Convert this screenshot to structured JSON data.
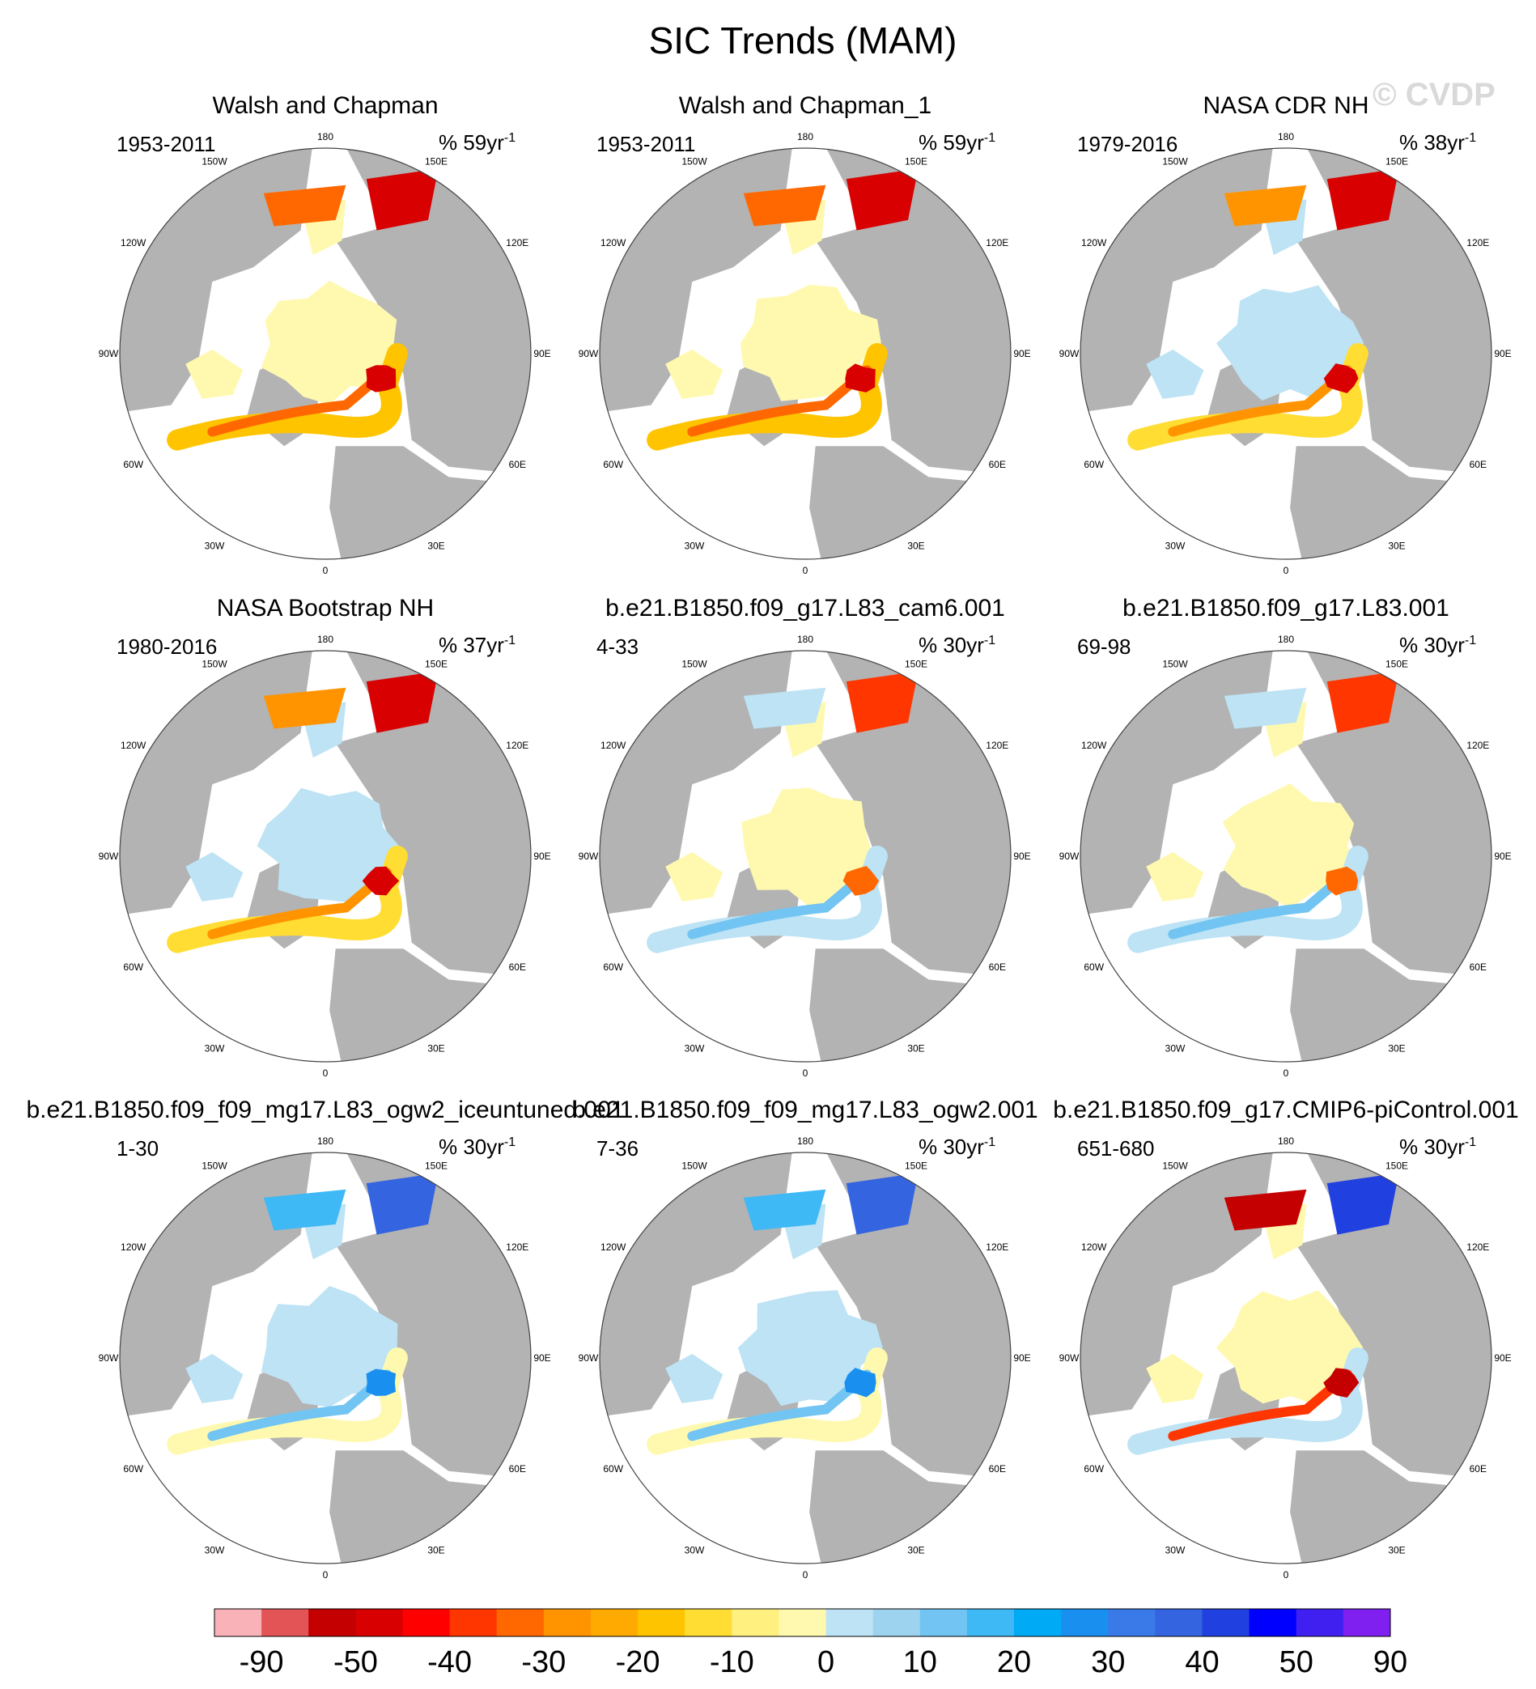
{
  "chart_data": {
    "type": "heatmap",
    "title": "SIC Trends (MAM)",
    "watermark": "© CVDP",
    "projection": "north polar stereographic",
    "lon_labels": [
      "180",
      "150E",
      "120E",
      "90E",
      "60E",
      "30E",
      "0",
      "30W",
      "60W",
      "90W",
      "120W",
      "150W"
    ],
    "panels": [
      {
        "name": "Walsh and Chapman",
        "period": "1953-2011",
        "units": "% 59yr",
        "units_exp": "-1",
        "regime": "decline-strong"
      },
      {
        "name": "Walsh and Chapman_1",
        "period": "1953-2011",
        "units": "% 59yr",
        "units_exp": "-1",
        "regime": "decline-strong"
      },
      {
        "name": "NASA CDR NH",
        "period": "1979-2016",
        "units": "% 38yr",
        "units_exp": "-1",
        "regime": "decline"
      },
      {
        "name": "NASA Bootstrap NH",
        "period": "1980-2016",
        "units": "% 37yr",
        "units_exp": "-1",
        "regime": "decline"
      },
      {
        "name": "b.e21.B1850.f09_g17.L83_cam6.001",
        "period": "4-33",
        "units": "% 30yr",
        "units_exp": "-1",
        "regime": "mixed"
      },
      {
        "name": "b.e21.B1850.f09_g17.L83.001",
        "period": "69-98",
        "units": "% 30yr",
        "units_exp": "-1",
        "regime": "mixed"
      },
      {
        "name": "b.e21.B1850.f09_f09_mg17.L83_ogw2_iceuntuned.001",
        "period": "1-30",
        "units": "% 30yr",
        "units_exp": "-1",
        "regime": "increase"
      },
      {
        "name": "b.e21.B1850.f09_f09_mg17.L83_ogw2.001",
        "period": "7-36",
        "units": "% 30yr",
        "units_exp": "-1",
        "regime": "increase"
      },
      {
        "name": "b.e21.B1850.f09_g17.CMIP6-piControl.001",
        "period": "651-680",
        "units": "% 30yr",
        "units_exp": "-1",
        "regime": "mixed-strong"
      }
    ],
    "colorbar": {
      "labels": [
        "-90",
        "-50",
        "-40",
        "-30",
        "-20",
        "-10",
        "0",
        "10",
        "20",
        "30",
        "40",
        "50",
        "90"
      ],
      "colors": [
        "#f9b3b8",
        "#e25456",
        "#c40000",
        "#d80000",
        "#ff0000",
        "#ff3600",
        "#ff6800",
        "#ff9400",
        "#ffaa00",
        "#ffc400",
        "#ffdd33",
        "#fff080",
        "#fff9b0",
        "#bde3f5",
        "#9ed3f0",
        "#72c4f2",
        "#3eb9f5",
        "#00aaf5",
        "#1990f0",
        "#3a7ae8",
        "#3464e0",
        "#2040e0",
        "#0000ff",
        "#4020f0",
        "#8020f0"
      ]
    }
  }
}
